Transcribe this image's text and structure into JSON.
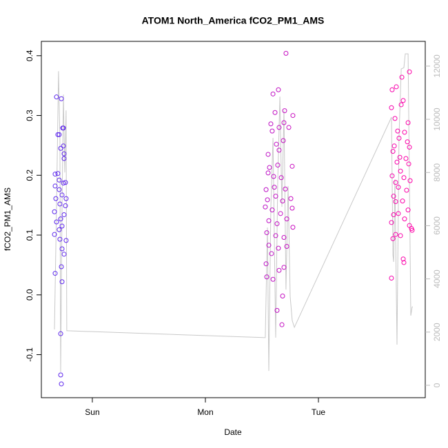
{
  "chart_data": {
    "type": "scatter",
    "title": "ATOM1 North_America fCO2_PM1_AMS",
    "xlabel": "Date",
    "ylabel": "fCO2_PM1_AMS",
    "x": [
      -0.317,
      -0.274,
      -0.305,
      -0.293,
      -0.262,
      -0.256,
      -0.28,
      -0.256,
      -0.25,
      -0.25,
      -0.329,
      -0.305,
      -0.293,
      -0.256,
      -0.238,
      -0.329,
      -0.293,
      -0.268,
      -0.323,
      -0.232,
      -0.287,
      -0.238,
      -0.335,
      -0.25,
      -0.28,
      -0.317,
      -0.268,
      -0.293,
      -0.335,
      -0.287,
      -0.232,
      -0.268,
      -0.25,
      -0.274,
      -0.329,
      -0.268,
      -0.28,
      -0.28,
      -0.274,
      1.598,
      1.646,
      1.713,
      1.616,
      1.701,
      1.774,
      1.579,
      1.652,
      1.695,
      1.738,
      1.591,
      1.628,
      1.689,
      1.555,
      1.652,
      1.567,
      1.64,
      1.768,
      1.555,
      1.604,
      1.671,
      1.537,
      1.61,
      1.707,
      1.549,
      1.622,
      1.683,
      1.756,
      1.53,
      1.591,
      1.665,
      1.768,
      1.561,
      1.634,
      1.72,
      1.774,
      1.543,
      1.622,
      1.695,
      1.561,
      1.646,
      1.72,
      1.585,
      1.537,
      1.652,
      1.695,
      1.543,
      1.598,
      1.683,
      1.634,
      1.677,
      2.805,
      2.738,
      2.689,
      2.652,
      2.75,
      2.646,
      2.732,
      2.677,
      2.793,
      2.701,
      2.762,
      2.713,
      2.787,
      2.671,
      2.805,
      2.659,
      2.72,
      2.774,
      2.695,
      2.799,
      2.726,
      2.652,
      2.756,
      2.683,
      2.811,
      2.707,
      2.78,
      2.665,
      2.744,
      2.683,
      2.793,
      2.707,
      2.665,
      2.762,
      2.646,
      2.805,
      2.823,
      2.829,
      2.683,
      2.726,
      2.659,
      2.75,
      2.756,
      2.646
    ],
    "values": [
      0.331,
      0.328,
      0.268,
      0.268,
      0.279,
      0.279,
      0.245,
      0.249,
      0.236,
      0.228,
      0.202,
      0.203,
      0.192,
      0.187,
      0.188,
      0.182,
      0.176,
      0.167,
      0.161,
      0.161,
      0.152,
      0.149,
      0.139,
      0.134,
      0.127,
      0.122,
      0.115,
      0.109,
      0.101,
      0.093,
      0.091,
      0.077,
      0.068,
      0.047,
      0.036,
      0.022,
      -0.065,
      -0.134,
      -0.149,
      0.336,
      0.343,
      0.404,
      0.305,
      0.308,
      0.3,
      0.286,
      0.28,
      0.288,
      0.28,
      0.274,
      0.252,
      0.258,
      0.235,
      0.242,
      0.213,
      0.217,
      0.215,
      0.204,
      0.198,
      0.196,
      0.176,
      0.18,
      0.177,
      0.159,
      0.165,
      0.157,
      0.161,
      0.147,
      0.142,
      0.136,
      0.145,
      0.124,
      0.119,
      0.127,
      0.113,
      0.104,
      0.099,
      0.096,
      0.083,
      0.078,
      0.081,
      0.069,
      0.052,
      0.041,
      0.046,
      0.03,
      0.026,
      -0.002,
      -0.026,
      -0.05,
      0.373,
      0.364,
      0.348,
      0.343,
      0.325,
      0.313,
      0.318,
      0.295,
      0.288,
      0.274,
      0.272,
      0.262,
      0.256,
      0.249,
      0.247,
      0.24,
      0.23,
      0.228,
      0.222,
      0.219,
      0.207,
      0.199,
      0.196,
      0.188,
      0.191,
      0.18,
      0.175,
      0.165,
      0.157,
      0.156,
      0.142,
      0.136,
      0.134,
      0.127,
      0.121,
      0.116,
      0.111,
      0.108,
      0.101,
      0.099,
      0.094,
      0.06,
      0.054,
      0.028
    ],
    "color_range": [
      "#5a26ee",
      "#ff00a8"
    ],
    "xlim": [
      -0.451,
      2.945
    ],
    "ylim": [
      -0.172,
      0.424
    ],
    "xticks": [
      {
        "value": 0,
        "label": "Sun"
      },
      {
        "value": 1,
        "label": "Mon"
      },
      {
        "value": 2,
        "label": "Tue"
      }
    ],
    "yticks": [
      -0.1,
      {
        "value": 0,
        "label": "0.0"
      },
      0.1,
      0.2,
      0.3,
      0.4
    ],
    "y2lim": [
      -466,
      12930
    ],
    "y2ticks": [
      0,
      2000,
      4000,
      6000,
      8000,
      10000,
      12000
    ],
    "line": {
      "axis": "y2",
      "color": "#c8c8c8",
      "x": [
        -0.335,
        -0.317,
        -0.299,
        -0.287,
        -0.28,
        -0.268,
        -0.256,
        -0.244,
        -0.232,
        -0.226,
        -0.22,
        1.53,
        1.549,
        1.561,
        1.579,
        1.598,
        1.616,
        1.622,
        1.64,
        1.659,
        1.677,
        1.695,
        1.713,
        1.732,
        1.75,
        1.768,
        1.787,
        2.646,
        2.659,
        2.665,
        2.677,
        2.695,
        2.713,
        2.732,
        2.756,
        2.768,
        2.793,
        2.805,
        2.817,
        2.829,
        2.835
      ],
      "values": [
        2100,
        6710,
        11810,
        9300,
        490,
        6710,
        10930,
        8000,
        10330,
        2050,
        2050,
        1790,
        5930,
        540,
        6710,
        9300,
        3600,
        1790,
        7740,
        10850,
        6710,
        10330,
        3600,
        7490,
        3340,
        2430,
        2180,
        10080,
        4900,
        4640,
        7740,
        1530,
        9300,
        11890,
        11940,
        12460,
        12460,
        7740,
        2620,
        2950,
        2950
      ]
    }
  }
}
